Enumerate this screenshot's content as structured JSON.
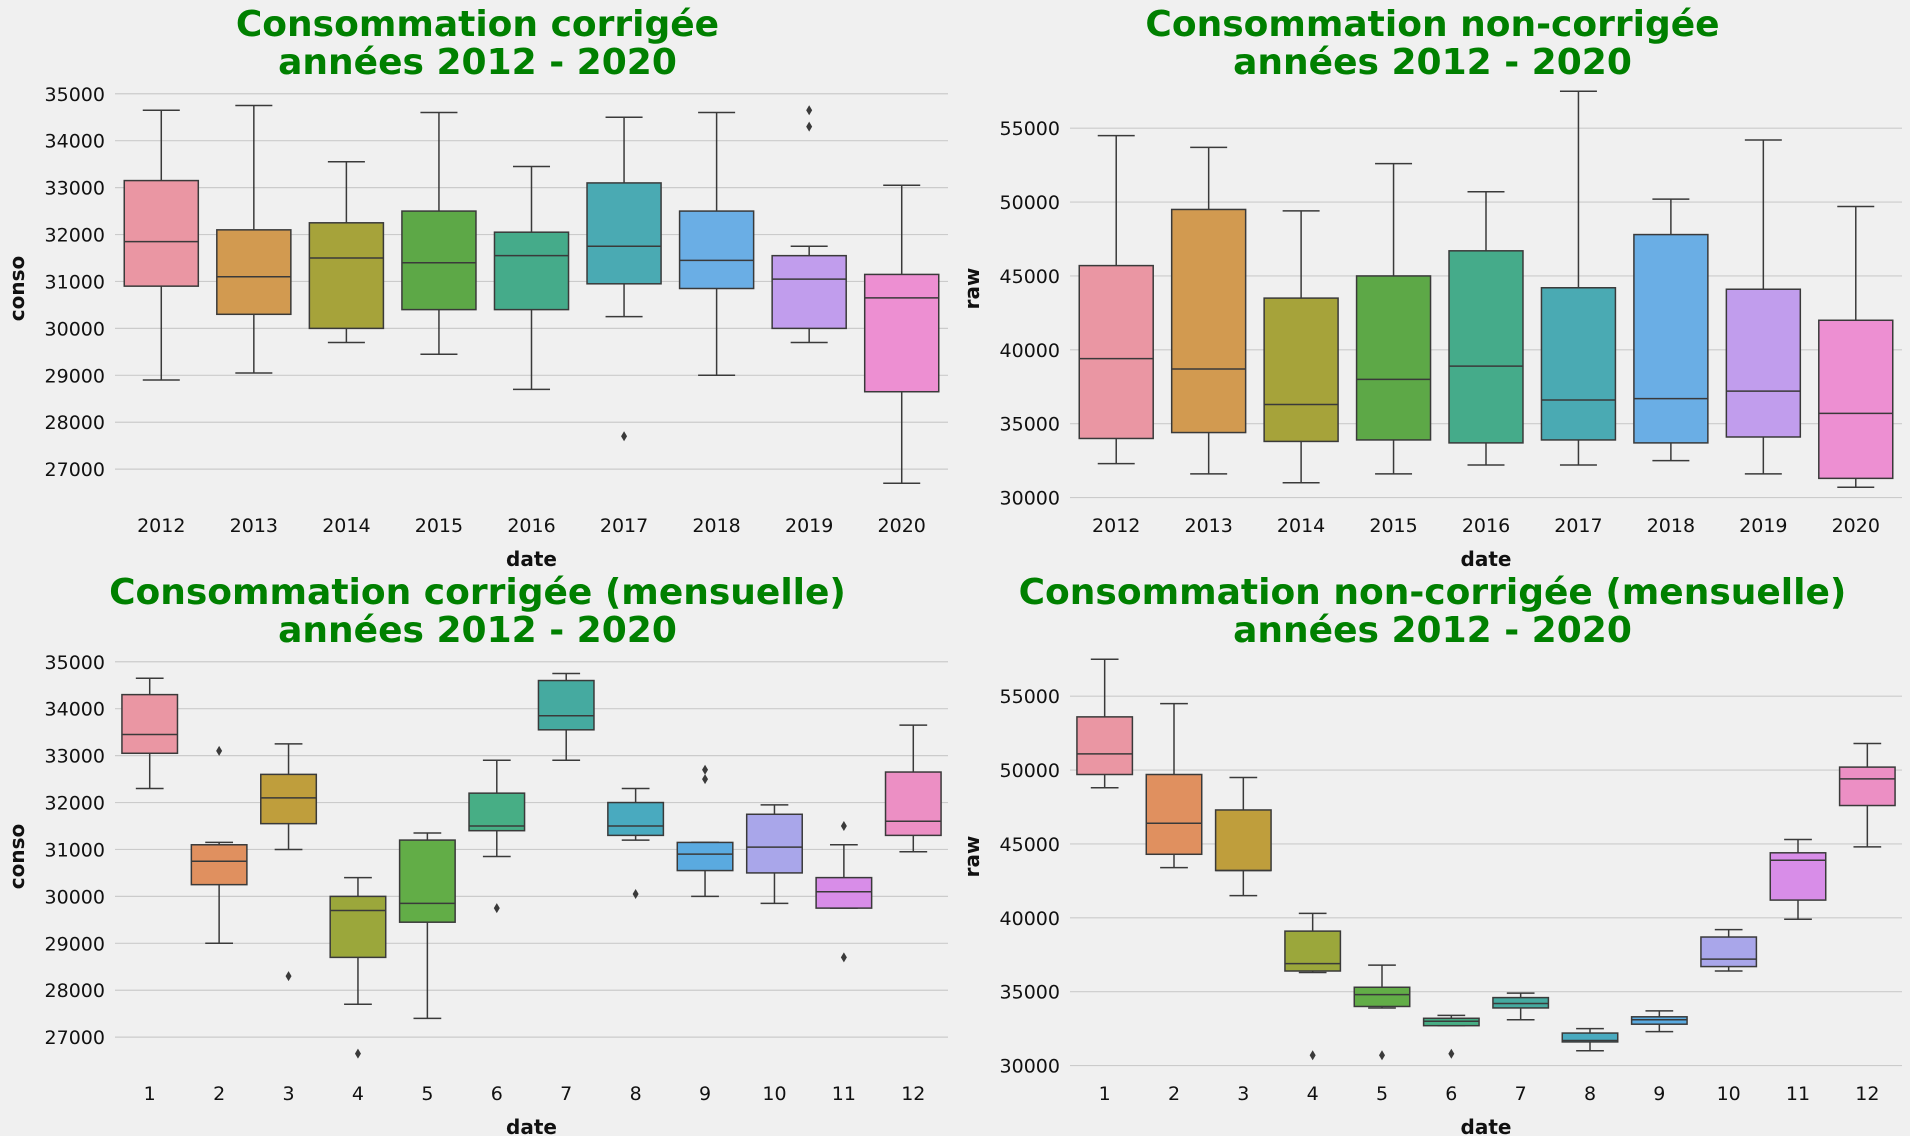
{
  "chart_data": [
    {
      "type": "boxplot",
      "title_line1": "Consommation corrigée",
      "title_line2": "années 2012 - 2020",
      "xlabel": "date",
      "ylabel": "conso",
      "ylim": [
        26300,
        35400
      ],
      "yticks": [
        27000,
        28000,
        29000,
        30000,
        31000,
        32000,
        33000,
        34000,
        35000
      ],
      "grid": true,
      "categories": [
        "2012",
        "2013",
        "2014",
        "2015",
        "2016",
        "2017",
        "2018",
        "2019",
        "2020"
      ],
      "colors": [
        "#ea96a3",
        "#d29a50",
        "#a6a33a",
        "#5da847",
        "#45ab8a",
        "#4aaab3",
        "#6aaee5",
        "#c19ded",
        "#ed8fd2"
      ],
      "boxes": [
        {
          "whislo": 28900,
          "q1": 30900,
          "med": 31850,
          "q3": 33150,
          "whishi": 34650,
          "fliers": []
        },
        {
          "whislo": 29050,
          "q1": 30300,
          "med": 31100,
          "q3": 32100,
          "whishi": 34750,
          "fliers": []
        },
        {
          "whislo": 29700,
          "q1": 30000,
          "med": 31500,
          "q3": 32250,
          "whishi": 33550,
          "fliers": []
        },
        {
          "whislo": 29450,
          "q1": 30400,
          "med": 31400,
          "q3": 32500,
          "whishi": 34600,
          "fliers": []
        },
        {
          "whislo": 28700,
          "q1": 30400,
          "med": 31550,
          "q3": 32050,
          "whishi": 33450,
          "fliers": []
        },
        {
          "whislo": 30250,
          "q1": 30950,
          "med": 31750,
          "q3": 33100,
          "whishi": 34500,
          "fliers": [
            27700
          ]
        },
        {
          "whislo": 29000,
          "q1": 30850,
          "med": 31450,
          "q3": 32500,
          "whishi": 34600,
          "fliers": []
        },
        {
          "whislo": 29700,
          "q1": 30000,
          "med": 31050,
          "q3": 31550,
          "whishi": 31750,
          "fliers": [
            34300,
            34650
          ]
        },
        {
          "whislo": 26700,
          "q1": 28650,
          "med": 30650,
          "q3": 31150,
          "whishi": 33050,
          "fliers": []
        }
      ]
    },
    {
      "type": "boxplot",
      "title_line1": "Consommation non-corrigée",
      "title_line2": "années 2012 - 2020",
      "xlabel": "date",
      "ylabel": "raw",
      "ylim": [
        29700,
        58600
      ],
      "yticks": [
        30000,
        35000,
        40000,
        45000,
        50000,
        55000
      ],
      "grid": true,
      "categories": [
        "2012",
        "2013",
        "2014",
        "2015",
        "2016",
        "2017",
        "2018",
        "2019",
        "2020"
      ],
      "colors": [
        "#ea96a3",
        "#d29a50",
        "#a6a33a",
        "#5da847",
        "#45ab8a",
        "#4aaab3",
        "#6aaee5",
        "#c19ded",
        "#ed8fd2"
      ],
      "boxes": [
        {
          "whislo": 32300,
          "q1": 34000,
          "med": 39400,
          "q3": 45700,
          "whishi": 54500,
          "fliers": []
        },
        {
          "whislo": 31600,
          "q1": 34400,
          "med": 38700,
          "q3": 49500,
          "whishi": 53700,
          "fliers": []
        },
        {
          "whislo": 31000,
          "q1": 33800,
          "med": 36300,
          "q3": 43500,
          "whishi": 49400,
          "fliers": []
        },
        {
          "whislo": 31600,
          "q1": 33900,
          "med": 38000,
          "q3": 45000,
          "whishi": 52600,
          "fliers": []
        },
        {
          "whislo": 32200,
          "q1": 33700,
          "med": 38900,
          "q3": 46700,
          "whishi": 50700,
          "fliers": []
        },
        {
          "whislo": 32200,
          "q1": 33900,
          "med": 36600,
          "q3": 44200,
          "whishi": 57500,
          "fliers": []
        },
        {
          "whislo": 32500,
          "q1": 33700,
          "med": 36700,
          "q3": 47800,
          "whishi": 50200,
          "fliers": []
        },
        {
          "whislo": 31600,
          "q1": 34100,
          "med": 37200,
          "q3": 44100,
          "whishi": 54200,
          "fliers": []
        },
        {
          "whislo": 30700,
          "q1": 31300,
          "med": 35700,
          "q3": 42000,
          "whishi": 49700,
          "fliers": []
        }
      ]
    },
    {
      "type": "boxplot",
      "title_line1": "Consommation corrigée (mensuelle)",
      "title_line2": "années 2012 - 2020",
      "xlabel": "date",
      "ylabel": "conso",
      "ylim": [
        26300,
        35400
      ],
      "yticks": [
        27000,
        28000,
        29000,
        30000,
        31000,
        32000,
        33000,
        34000,
        35000
      ],
      "grid": true,
      "categories": [
        "1",
        "2",
        "3",
        "4",
        "5",
        "6",
        "7",
        "8",
        "9",
        "10",
        "11",
        "12"
      ],
      "colors": [
        "#ea96a3",
        "#e0905f",
        "#bf9e3c",
        "#9ba73b",
        "#62ad47",
        "#47ae85",
        "#45aaa0",
        "#49aabf",
        "#5aaae0",
        "#a9a6ea",
        "#d88de8",
        "#ec8fc4"
      ],
      "boxes": [
        {
          "whislo": 32300,
          "q1": 33050,
          "med": 33450,
          "q3": 34300,
          "whishi": 34650,
          "fliers": []
        },
        {
          "whislo": 29000,
          "q1": 30250,
          "med": 30750,
          "q3": 31100,
          "whishi": 31150,
          "fliers": [
            33100
          ]
        },
        {
          "whislo": 31000,
          "q1": 31550,
          "med": 32100,
          "q3": 32600,
          "whishi": 33250,
          "fliers": [
            28300
          ]
        },
        {
          "whislo": 27700,
          "q1": 28700,
          "med": 29700,
          "q3": 30000,
          "whishi": 30400,
          "fliers": [
            26650
          ]
        },
        {
          "whislo": 27400,
          "q1": 29450,
          "med": 29850,
          "q3": 31200,
          "whishi": 31350,
          "fliers": []
        },
        {
          "whislo": 30850,
          "q1": 31400,
          "med": 31500,
          "q3": 32200,
          "whishi": 32900,
          "fliers": [
            29750
          ]
        },
        {
          "whislo": 32900,
          "q1": 33550,
          "med": 33850,
          "q3": 34600,
          "whishi": 34750,
          "fliers": []
        },
        {
          "whislo": 31200,
          "q1": 31300,
          "med": 31500,
          "q3": 32000,
          "whishi": 32300,
          "fliers": [
            30050
          ]
        },
        {
          "whislo": 30000,
          "q1": 30550,
          "med": 30900,
          "q3": 31150,
          "whishi": 31150,
          "fliers": [
            32500,
            32700
          ]
        },
        {
          "whislo": 29850,
          "q1": 30500,
          "med": 31050,
          "q3": 31750,
          "whishi": 31950,
          "fliers": []
        },
        {
          "whislo": 29750,
          "q1": 29750,
          "med": 30100,
          "q3": 30400,
          "whishi": 31100,
          "fliers": [
            31500,
            28700
          ]
        },
        {
          "whislo": 30950,
          "q1": 31300,
          "med": 31600,
          "q3": 32650,
          "whishi": 33650,
          "fliers": []
        }
      ]
    },
    {
      "type": "boxplot",
      "title_line1": "Consommation non-corrigée (mensuelle)",
      "title_line2": "années 2012 - 2020",
      "xlabel": "date",
      "ylabel": "raw",
      "ylim": [
        29700,
        58600
      ],
      "yticks": [
        30000,
        35000,
        40000,
        45000,
        50000,
        55000
      ],
      "grid": true,
      "categories": [
        "1",
        "2",
        "3",
        "4",
        "5",
        "6",
        "7",
        "8",
        "9",
        "10",
        "11",
        "12"
      ],
      "colors": [
        "#ea96a3",
        "#e0905f",
        "#bf9e3c",
        "#9ba73b",
        "#62ad47",
        "#47ae85",
        "#45aaa0",
        "#49aabf",
        "#5aaae0",
        "#a9a6ea",
        "#d88de8",
        "#ec8fc4"
      ],
      "boxes": [
        {
          "whislo": 48800,
          "q1": 49700,
          "med": 51100,
          "q3": 53600,
          "whishi": 57500,
          "fliers": []
        },
        {
          "whislo": 43400,
          "q1": 44300,
          "med": 46400,
          "q3": 49700,
          "whishi": 54500,
          "fliers": []
        },
        {
          "whislo": 41500,
          "q1": 43200,
          "med": 43200,
          "q3": 47300,
          "whishi": 49500,
          "fliers": []
        },
        {
          "whislo": 36300,
          "q1": 36400,
          "med": 36900,
          "q3": 39100,
          "whishi": 40300,
          "fliers": [
            30700
          ]
        },
        {
          "whislo": 33900,
          "q1": 34000,
          "med": 34800,
          "q3": 35300,
          "whishi": 36800,
          "fliers": [
            30700
          ]
        },
        {
          "whislo": 32700,
          "q1": 32700,
          "med": 33000,
          "q3": 33200,
          "whishi": 33400,
          "fliers": [
            30800
          ]
        },
        {
          "whislo": 33100,
          "q1": 33900,
          "med": 34200,
          "q3": 34600,
          "whishi": 34900,
          "fliers": []
        },
        {
          "whislo": 31000,
          "q1": 31600,
          "med": 31700,
          "q3": 32200,
          "whishi": 32500,
          "fliers": []
        },
        {
          "whislo": 32300,
          "q1": 32800,
          "med": 33100,
          "q3": 33300,
          "whishi": 33700,
          "fliers": []
        },
        {
          "whislo": 36400,
          "q1": 36700,
          "med": 37200,
          "q3": 38700,
          "whishi": 39200,
          "fliers": []
        },
        {
          "whislo": 39900,
          "q1": 41200,
          "med": 43900,
          "q3": 44400,
          "whishi": 45300,
          "fliers": []
        },
        {
          "whislo": 44800,
          "q1": 47600,
          "med": 49400,
          "q3": 50200,
          "whishi": 51800,
          "fliers": []
        }
      ]
    }
  ]
}
